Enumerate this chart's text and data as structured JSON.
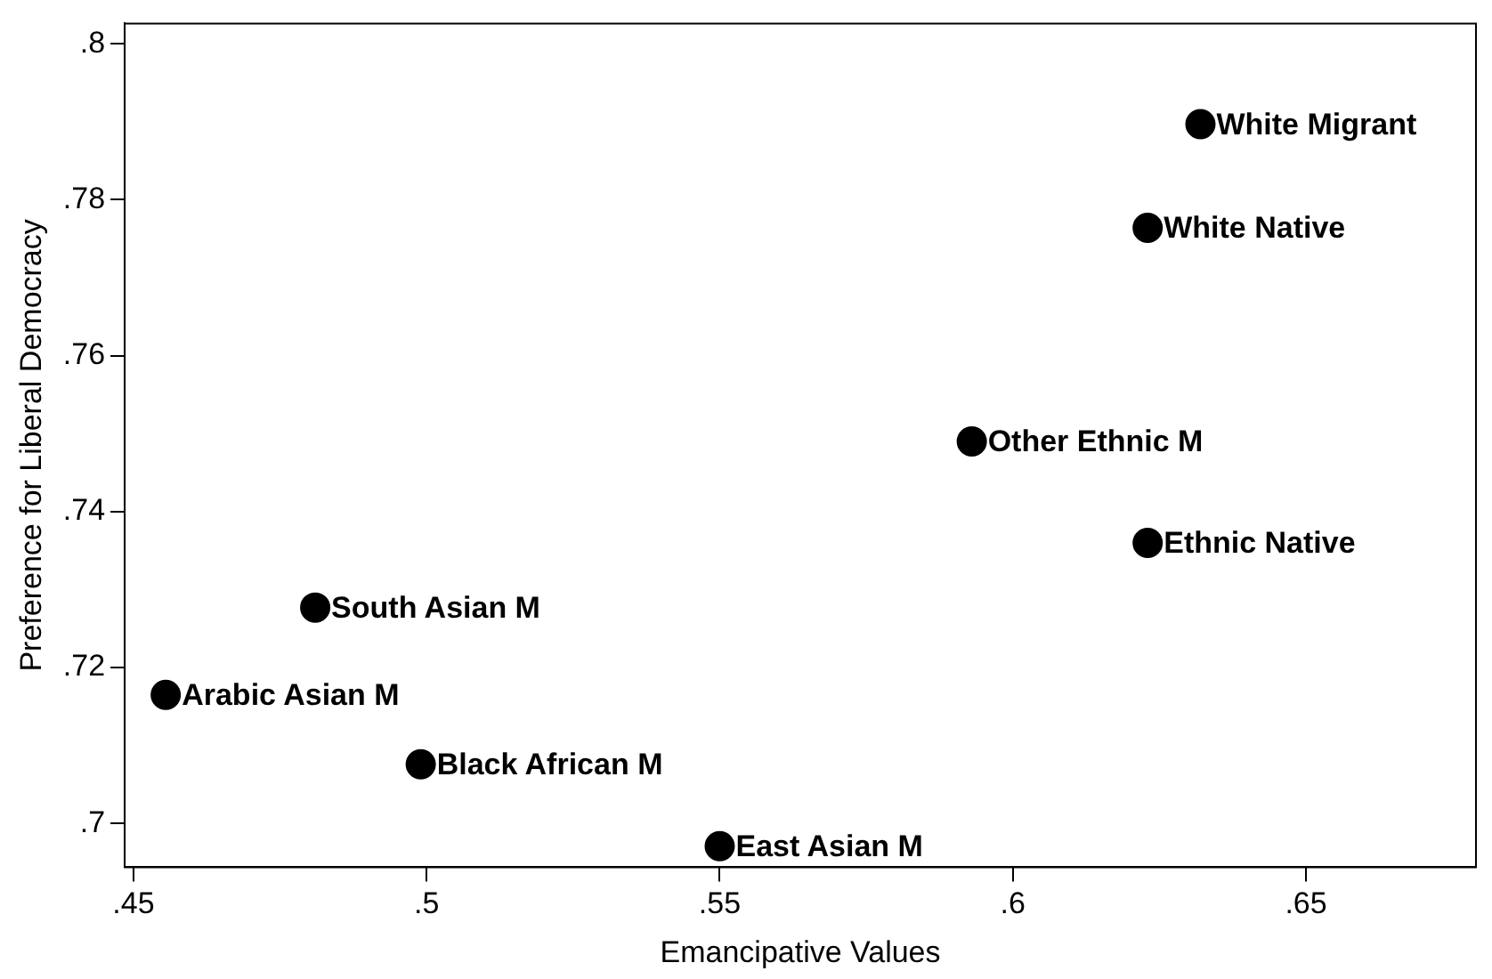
{
  "chart_data": {
    "type": "scatter",
    "xlabel": "Emancipative Values",
    "ylabel": "Preference for Liberal Democracy",
    "x": [
      0.632,
      0.623,
      0.593,
      0.623,
      0.481,
      0.4555,
      0.499,
      0.55
    ],
    "values": [
      0.7897,
      0.7764,
      0.749,
      0.736,
      0.7277,
      0.7165,
      0.7076,
      0.6971
    ],
    "color": "#000000",
    "marker": "circle",
    "grid": false,
    "legend": false,
    "xlim": [
      0.4485,
      0.679
    ],
    "ylim": [
      0.6944,
      0.8026
    ],
    "xticks": [
      {
        "value": 0.45,
        "label": ".45"
      },
      {
        "value": 0.5,
        "label": ".5"
      },
      {
        "value": 0.55,
        "label": ".55"
      },
      {
        "value": 0.6,
        "label": ".6"
      },
      {
        "value": 0.65,
        "label": ".65"
      }
    ],
    "yticks": [
      {
        "value": 0.7,
        "label": ".7"
      },
      {
        "value": 0.72,
        "label": ".72"
      },
      {
        "value": 0.74,
        "label": ".74"
      },
      {
        "value": 0.76,
        "label": ".76"
      },
      {
        "value": 0.78,
        "label": ".78"
      },
      {
        "value": 0.8,
        "label": ".8"
      }
    ],
    "annotations": [
      {
        "text": "White Migrant",
        "x": 0.632,
        "y": 0.7897
      },
      {
        "text": "White Native",
        "x": 0.623,
        "y": 0.7764
      },
      {
        "text": "Other Ethnic M",
        "x": 0.593,
        "y": 0.749
      },
      {
        "text": "Ethnic Native",
        "x": 0.623,
        "y": 0.736
      },
      {
        "text": "South Asian M",
        "x": 0.481,
        "y": 0.7277
      },
      {
        "text": "Arabic Asian M",
        "x": 0.4555,
        "y": 0.7165
      },
      {
        "text": "Black African M",
        "x": 0.499,
        "y": 0.7076
      },
      {
        "text": "East Asian M",
        "x": 0.55,
        "y": 0.6971
      }
    ]
  }
}
